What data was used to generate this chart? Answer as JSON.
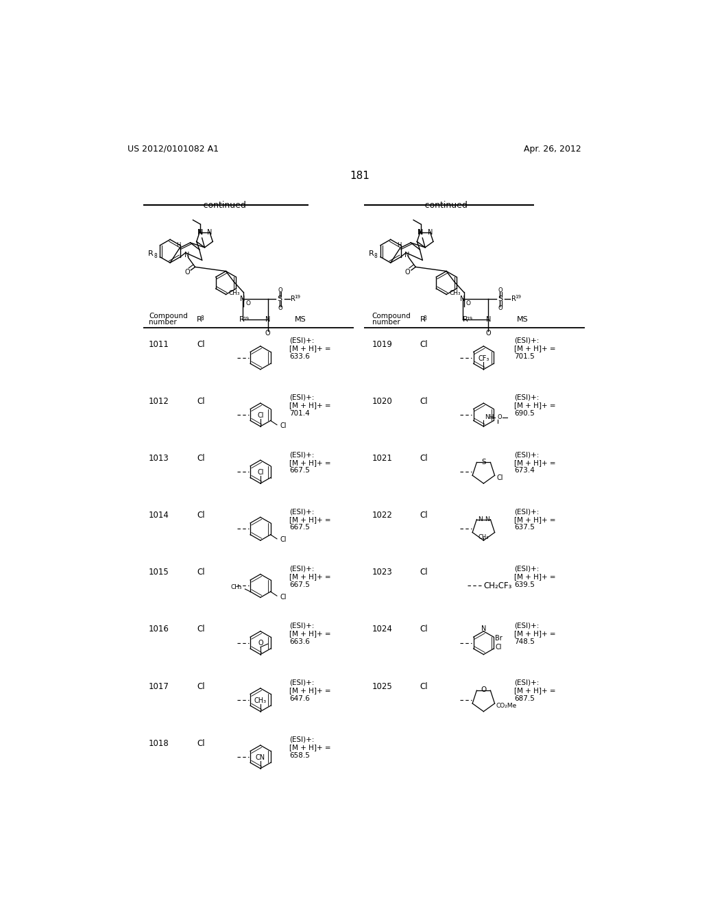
{
  "page_header_left": "US 2012/0101082 A1",
  "page_header_right": "Apr. 26, 2012",
  "page_number": "181",
  "continued_left": "-continued",
  "continued_right": "-continued",
  "left_compounds": [
    {
      "number": "1011",
      "r8": "Cl",
      "ms": "(ESI)+:\n[M + H]+ =\n633.6"
    },
    {
      "number": "1012",
      "r8": "Cl",
      "ms": "(ESI)+:\n[M + H]+ =\n701.4"
    },
    {
      "number": "1013",
      "r8": "Cl",
      "ms": "(ESI)+:\n[M + H]+ =\n667.5"
    },
    {
      "number": "1014",
      "r8": "Cl",
      "ms": "(ESI)+:\n[M + H]+ =\n667.5"
    },
    {
      "number": "1015",
      "r8": "Cl",
      "ms": "(ESI)+:\n[M + H]+ =\n667.5"
    },
    {
      "number": "1016",
      "r8": "Cl",
      "ms": "(ESI)+:\n[M + H]+ =\n663.6"
    },
    {
      "number": "1017",
      "r8": "Cl",
      "ms": "(ESI)+:\n[M + H]+ =\n647.6"
    },
    {
      "number": "1018",
      "r8": "Cl",
      "ms": "(ESI)+:\n[M + H]+ =\n658.5"
    }
  ],
  "right_compounds": [
    {
      "number": "1019",
      "r8": "Cl",
      "ms": "(ESI)+:\n[M + H]+ =\n701.5"
    },
    {
      "number": "1020",
      "r8": "Cl",
      "ms": "(ESI)+:\n[M + H]+ =\n690.5"
    },
    {
      "number": "1021",
      "r8": "Cl",
      "ms": "(ESI)+:\n[M + H]+ =\n673.4"
    },
    {
      "number": "1022",
      "r8": "Cl",
      "ms": "(ESI)+:\n[M + H]+ =\n637.5"
    },
    {
      "number": "1023",
      "r8": "Cl",
      "ms": "(ESI)+:\n[M + H]+ =\n639.5"
    },
    {
      "number": "1024",
      "r8": "Cl",
      "ms": "(ESI)+:\n[M + H]+ =\n748.5"
    },
    {
      "number": "1025",
      "r8": "Cl",
      "ms": "(ESI)+:\n[M + H]+ =\n687.5"
    }
  ],
  "bg_color": "#ffffff"
}
